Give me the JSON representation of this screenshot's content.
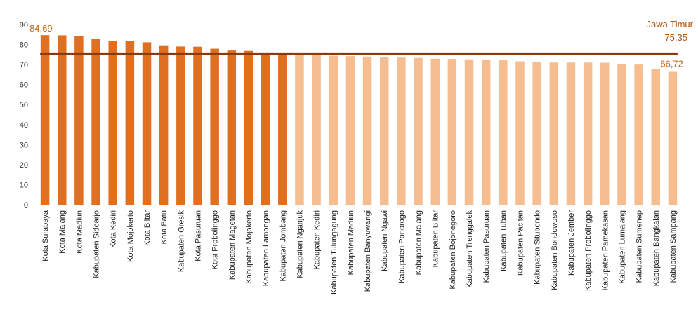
{
  "chart_data": {
    "type": "bar",
    "ylim": [
      0,
      90
    ],
    "yticks": [
      0,
      10,
      20,
      30,
      40,
      50,
      60,
      70,
      80,
      90
    ],
    "grid": false,
    "colors": {
      "highlight": "#e07020",
      "other": "#f6be90",
      "reference_line": "#8a3a0c",
      "value_label": "#c0661a"
    },
    "highlight_count": 15,
    "categories": [
      "Kota Surabaya",
      "Kota Malang",
      "Kota Madiun",
      "Kabupaten Sidoarjo",
      "Kota Kediri",
      "Kota Mojokerto",
      "Kota Blitar",
      "Kota Batu",
      "Kabupaten Gresik",
      "Kota Pasuruan",
      "Kota Probolinggo",
      "Kabupaten Magetan",
      "Kabupaten Mojokerto",
      "Kabupaten Lamongan",
      "Kabupaten Jombang",
      "Kabupaten Nganjuk",
      "Kabupaten Kediri",
      "Kabupaten Tulungagung",
      "Kabupaten Madiun",
      "Kabupaten Banyuwangi",
      "Kabupaten Ngawi",
      "Kabupaten Ponorogo",
      "Kabupaten Malang",
      "Kabupaten Blitar",
      "Kabupaten Bojonegoro",
      "Kabupaten Trenggalek",
      "Kabupaten Pasuruan",
      "Kabupaten Tuban",
      "Kabupaten Pacitan",
      "Kabupaten Situbondo",
      "Kabupaten Bondowoso",
      "Kabupaten Jember",
      "Kabupaten Probolinggo",
      "Kabupaten Pamekasan",
      "Kabupaten Lumajang",
      "Kabupaten Sumenep",
      "Kabupaten Bangkalan",
      "Kabupaten Sampang"
    ],
    "values": [
      84.69,
      84.6,
      84.2,
      82.8,
      81.9,
      81.7,
      81.1,
      79.6,
      79.0,
      78.9,
      77.9,
      77.0,
      76.8,
      75.5,
      75.3,
      74.8,
      74.6,
      74.4,
      74.2,
      74.0,
      73.8,
      73.5,
      73.3,
      72.9,
      72.8,
      72.6,
      72.2,
      72.1,
      71.6,
      71.2,
      71.0,
      71.0,
      71.0,
      70.9,
      70.3,
      70.0,
      67.6,
      66.72
    ],
    "value_labels": [
      {
        "index": 0,
        "text": "84,69"
      },
      {
        "index": 37,
        "text": "66,72"
      }
    ],
    "reference_line": {
      "value": 75.35,
      "label": "Jawa Timur",
      "value_text": "75,35"
    }
  }
}
